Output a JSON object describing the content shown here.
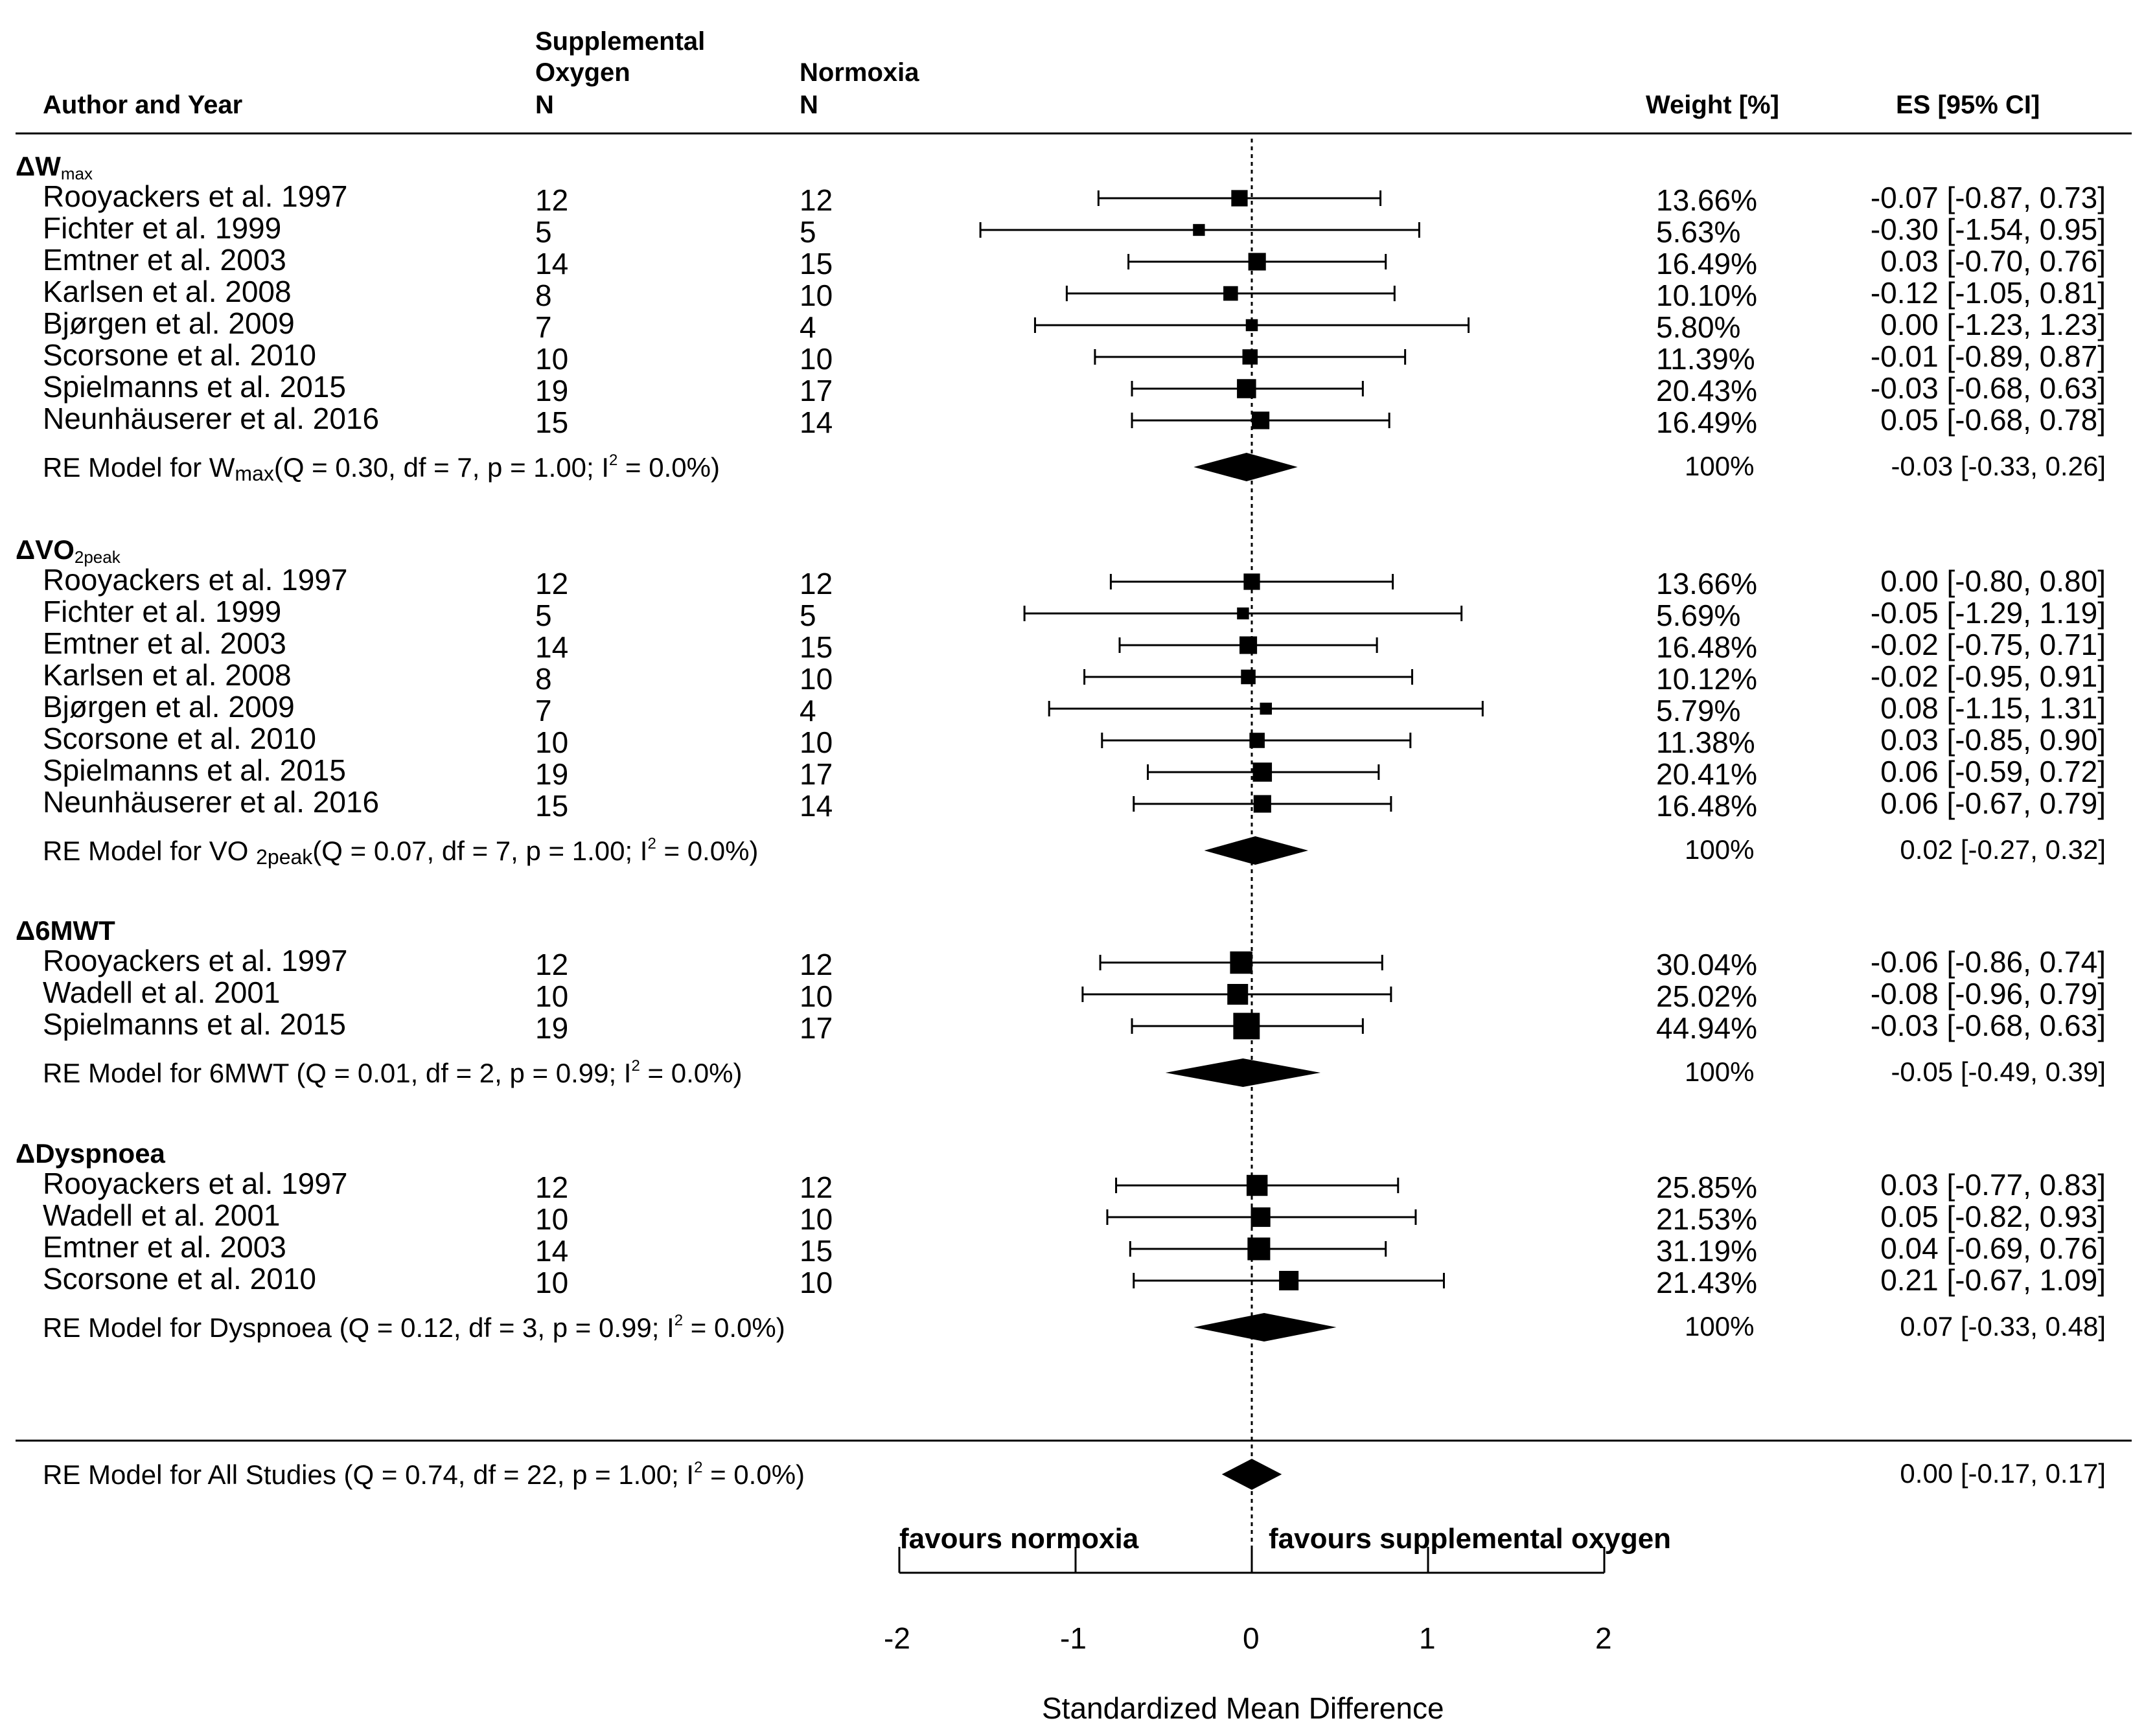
{
  "header": {
    "author": "Author and Year",
    "supp_line1": "Supplemental",
    "supp_line2": "Oxygen",
    "supp_line3": "N",
    "norm_line1": "Normoxia",
    "norm_line2": "N",
    "weight": "Weight [%]",
    "es": "ES  [95%   CI]"
  },
  "chart_data": {
    "type": "forest",
    "xlabel": "Standardized Mean Difference",
    "xlim": [
      -2,
      2
    ],
    "xticks": [
      -2,
      -1,
      0,
      1,
      2
    ],
    "tick_labels": [
      "-2",
      "-1",
      "0",
      "1",
      "2"
    ],
    "favours_left": "favours normoxia",
    "favours_right": "favours supplemental oxygen",
    "groups": [
      {
        "delta": "Δ",
        "name": "W",
        "subscript": "max",
        "studies": [
          {
            "author": "Rooyackers et al. 1997",
            "n_supp": "12",
            "n_norm": "12",
            "weight": "13.66%",
            "es_text": "-0.07 [-0.87, 0.73]",
            "es": -0.07,
            "lo": -0.87,
            "hi": 0.73
          },
          {
            "author": "Fichter et al. 1999",
            "n_supp": "5",
            "n_norm": "5",
            "weight": "5.63%",
            "es_text": "-0.30 [-1.54, 0.95]",
            "es": -0.3,
            "lo": -1.54,
            "hi": 0.95
          },
          {
            "author": "Emtner et al. 2003",
            "n_supp": "14",
            "n_norm": "15",
            "weight": "16.49%",
            "es_text": "0.03 [-0.70, 0.76]",
            "es": 0.03,
            "lo": -0.7,
            "hi": 0.76
          },
          {
            "author": "Karlsen et al. 2008",
            "n_supp": "8",
            "n_norm": "10",
            "weight": "10.10%",
            "es_text": "-0.12 [-1.05, 0.81]",
            "es": -0.12,
            "lo": -1.05,
            "hi": 0.81
          },
          {
            "author": "Bjørgen et al. 2009",
            "n_supp": "7",
            "n_norm": "4",
            "weight": "5.80%",
            "es_text": "0.00 [-1.23, 1.23]",
            "es": 0.0,
            "lo": -1.23,
            "hi": 1.23
          },
          {
            "author": "Scorsone et al. 2010",
            "n_supp": "10",
            "n_norm": "10",
            "weight": "11.39%",
            "es_text": "-0.01 [-0.89, 0.87]",
            "es": -0.01,
            "lo": -0.89,
            "hi": 0.87
          },
          {
            "author": "Spielmanns et al. 2015",
            "n_supp": "19",
            "n_norm": "17",
            "weight": "20.43%",
            "es_text": "-0.03 [-0.68, 0.63]",
            "es": -0.03,
            "lo": -0.68,
            "hi": 0.63
          },
          {
            "author": "Neunhäuserer et al. 2016",
            "n_supp": "15",
            "n_norm": "14",
            "weight": "16.49%",
            "es_text": "0.05 [-0.68, 0.78]",
            "es": 0.05,
            "lo": -0.68,
            "hi": 0.78
          }
        ],
        "model": {
          "prefix": "RE Model for W",
          "subscript": "max",
          "suffix": "(Q = 0.30, df = 7, p = 1.00; I",
          "sup": "2",
          "end": " = 0.0%)",
          "weight": "100%",
          "es_text": "-0.03 [-0.33, 0.26]",
          "es": -0.03,
          "lo": -0.33,
          "hi": 0.26
        }
      },
      {
        "delta": "Δ",
        "name": "VO",
        "subscript": "2peak",
        "studies": [
          {
            "author": "Rooyackers et al. 1997",
            "n_supp": "12",
            "n_norm": "12",
            "weight": "13.66%",
            "es_text": "0.00 [-0.80, 0.80]",
            "es": 0.0,
            "lo": -0.8,
            "hi": 0.8
          },
          {
            "author": "Fichter et al. 1999",
            "n_supp": "5",
            "n_norm": "5",
            "weight": "5.69%",
            "es_text": "-0.05 [-1.29, 1.19]",
            "es": -0.05,
            "lo": -1.29,
            "hi": 1.19
          },
          {
            "author": "Emtner et al. 2003",
            "n_supp": "14",
            "n_norm": "15",
            "weight": "16.48%",
            "es_text": "-0.02 [-0.75, 0.71]",
            "es": -0.02,
            "lo": -0.75,
            "hi": 0.71
          },
          {
            "author": "Karlsen et al. 2008",
            "n_supp": "8",
            "n_norm": "10",
            "weight": "10.12%",
            "es_text": "-0.02 [-0.95, 0.91]",
            "es": -0.02,
            "lo": -0.95,
            "hi": 0.91
          },
          {
            "author": "Bjørgen et al. 2009",
            "n_supp": "7",
            "n_norm": "4",
            "weight": "5.79%",
            "es_text": "0.08 [-1.15, 1.31]",
            "es": 0.08,
            "lo": -1.15,
            "hi": 1.31
          },
          {
            "author": "Scorsone et al. 2010",
            "n_supp": "10",
            "n_norm": "10",
            "weight": "11.38%",
            "es_text": "0.03 [-0.85, 0.90]",
            "es": 0.03,
            "lo": -0.85,
            "hi": 0.9
          },
          {
            "author": "Spielmanns et al. 2015",
            "n_supp": "19",
            "n_norm": "17",
            "weight": "20.41%",
            "es_text": "0.06 [-0.59, 0.72]",
            "es": 0.06,
            "lo": -0.59,
            "hi": 0.72
          },
          {
            "author": "Neunhäuserer et al. 2016",
            "n_supp": "15",
            "n_norm": "14",
            "weight": "16.48%",
            "es_text": "0.06 [-0.67, 0.79]",
            "es": 0.06,
            "lo": -0.67,
            "hi": 0.79
          }
        ],
        "model": {
          "prefix": "RE Model for VO ",
          "subscript": "2peak",
          "suffix": "(Q = 0.07, df = 7, p = 1.00; I",
          "sup": "2",
          "end": " = 0.0%)",
          "weight": "100%",
          "es_text": "0.02 [-0.27, 0.32]",
          "es": 0.02,
          "lo": -0.27,
          "hi": 0.32
        }
      },
      {
        "delta": "Δ",
        "name": "6MWT",
        "subscript": "",
        "studies": [
          {
            "author": "Rooyackers et al. 1997",
            "n_supp": "12",
            "n_norm": "12",
            "weight": "30.04%",
            "es_text": "-0.06 [-0.86, 0.74]",
            "es": -0.06,
            "lo": -0.86,
            "hi": 0.74
          },
          {
            "author": "Wadell et al. 2001",
            "n_supp": "10",
            "n_norm": "10",
            "weight": "25.02%",
            "es_text": "-0.08 [-0.96, 0.79]",
            "es": -0.08,
            "lo": -0.96,
            "hi": 0.79
          },
          {
            "author": "Spielmanns et al. 2015",
            "n_supp": "19",
            "n_norm": "17",
            "weight": "44.94%",
            "es_text": "-0.03 [-0.68, 0.63]",
            "es": -0.03,
            "lo": -0.68,
            "hi": 0.63
          }
        ],
        "model": {
          "prefix": "RE Model for 6MWT ",
          "subscript": "",
          "suffix": "(Q = 0.01, df = 2, p = 0.99; I",
          "sup": "2",
          "end": " = 0.0%)",
          "weight": "100%",
          "es_text": "-0.05 [-0.49, 0.39]",
          "es": -0.05,
          "lo": -0.49,
          "hi": 0.39
        }
      },
      {
        "delta": "Δ",
        "name": "Dyspnoea",
        "subscript": "",
        "studies": [
          {
            "author": "Rooyackers et al. 1997",
            "n_supp": "12",
            "n_norm": "12",
            "weight": "25.85%",
            "es_text": "0.03 [-0.77, 0.83]",
            "es": 0.03,
            "lo": -0.77,
            "hi": 0.83
          },
          {
            "author": "Wadell et al. 2001",
            "n_supp": "10",
            "n_norm": "10",
            "weight": "21.53%",
            "es_text": "0.05 [-0.82, 0.93]",
            "es": 0.05,
            "lo": -0.82,
            "hi": 0.93
          },
          {
            "author": "Emtner et al. 2003",
            "n_supp": "14",
            "n_norm": "15",
            "weight": "31.19%",
            "es_text": "0.04 [-0.69, 0.76]",
            "es": 0.04,
            "lo": -0.69,
            "hi": 0.76
          },
          {
            "author": "Scorsone et al. 2010",
            "n_supp": "10",
            "n_norm": "10",
            "weight": "21.43%",
            "es_text": "0.21 [-0.67, 1.09]",
            "es": 0.21,
            "lo": -0.67,
            "hi": 1.09
          }
        ],
        "model": {
          "prefix": "RE Model for Dyspnoea ",
          "subscript": "",
          "suffix": "(Q = 0.12, df = 3, p = 0.99; I",
          "sup": "2",
          "end": " = 0.0%)",
          "weight": "100%",
          "es_text": "0.07 [-0.33, 0.48]",
          "es": 0.07,
          "lo": -0.33,
          "hi": 0.48
        }
      }
    ],
    "overall": {
      "prefix": "RE Model for All Studies ",
      "suffix": "(Q = 0.74, df = 22, p = 1.00; I",
      "sup": "2",
      "end": " = 0.0%)",
      "es_text": "0.00 [-0.17, 0.17]",
      "es": 0.0,
      "lo": -0.17,
      "hi": 0.17
    }
  }
}
